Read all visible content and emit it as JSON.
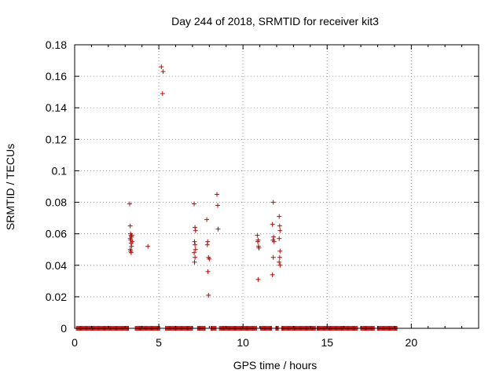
{
  "chart_data": {
    "type": "scatter",
    "title": "Day 244 of 2018, SRMTID for receiver kit3",
    "xlabel": "GPS time / hours",
    "ylabel": "SRMTID / TECUs",
    "xlim": [
      0,
      24
    ],
    "ylim": [
      0,
      0.18
    ],
    "x_ticks": [
      "0",
      "5",
      "10",
      "15",
      "20"
    ],
    "x_tick_values": [
      0,
      5,
      10,
      15,
      20
    ],
    "y_ticks": [
      "0",
      "0.02",
      "0.04",
      "0.06",
      "0.08",
      "0.1",
      "0.12",
      "0.14",
      "0.16",
      "0.18"
    ],
    "y_tick_values": [
      0,
      0.02,
      0.04,
      0.06,
      0.08,
      0.1,
      0.12,
      0.14,
      0.16,
      0.18
    ],
    "grid": true,
    "marker": "+",
    "color": "#cc0000",
    "series": [
      {
        "points": [
          [
            3.27,
            0.079
          ],
          [
            3.3,
            0.065
          ],
          [
            3.32,
            0.06
          ],
          [
            3.35,
            0.059
          ],
          [
            3.37,
            0.058
          ],
          [
            3.3,
            0.057
          ],
          [
            3.33,
            0.056
          ],
          [
            3.35,
            0.054
          ],
          [
            3.38,
            0.052
          ],
          [
            3.3,
            0.05
          ],
          [
            3.33,
            0.049
          ],
          [
            3.36,
            0.048
          ],
          [
            3.4,
            0.059
          ],
          [
            3.42,
            0.055
          ],
          [
            4.35,
            0.052
          ],
          [
            5.15,
            0.166
          ],
          [
            5.25,
            0.163
          ],
          [
            5.22,
            0.149
          ],
          [
            7.1,
            0.079
          ],
          [
            7.15,
            0.064
          ],
          [
            7.18,
            0.062
          ],
          [
            7.12,
            0.055
          ],
          [
            7.15,
            0.053
          ],
          [
            7.18,
            0.05
          ],
          [
            7.1,
            0.048
          ],
          [
            7.15,
            0.045
          ],
          [
            7.12,
            0.042
          ],
          [
            7.85,
            0.069
          ],
          [
            7.9,
            0.055
          ],
          [
            7.88,
            0.053
          ],
          [
            7.95,
            0.045
          ],
          [
            8.0,
            0.044
          ],
          [
            7.92,
            0.036
          ],
          [
            7.95,
            0.021
          ],
          [
            8.45,
            0.085
          ],
          [
            8.5,
            0.078
          ],
          [
            8.52,
            0.063
          ],
          [
            10.85,
            0.059
          ],
          [
            10.9,
            0.056
          ],
          [
            10.88,
            0.055
          ],
          [
            10.92,
            0.052
          ],
          [
            10.95,
            0.051
          ],
          [
            10.9,
            0.031
          ],
          [
            11.8,
            0.08
          ],
          [
            11.75,
            0.066
          ],
          [
            11.82,
            0.058
          ],
          [
            11.78,
            0.056
          ],
          [
            11.85,
            0.055
          ],
          [
            11.8,
            0.045
          ],
          [
            11.75,
            0.034
          ],
          [
            12.15,
            0.071
          ],
          [
            12.18,
            0.065
          ],
          [
            12.2,
            0.062
          ],
          [
            12.15,
            0.057
          ],
          [
            12.2,
            0.049
          ],
          [
            12.18,
            0.045
          ],
          [
            12.15,
            0.042
          ],
          [
            12.2,
            0.04
          ]
        ]
      }
    ],
    "zero_value_segments": [
      [
        0.1,
        3.2
      ],
      [
        3.6,
        5.05
      ],
      [
        5.4,
        7.0
      ],
      [
        7.3,
        7.75
      ],
      [
        8.1,
        8.4
      ],
      [
        8.6,
        10.8
      ],
      [
        11.05,
        11.7
      ],
      [
        11.95,
        12.1
      ],
      [
        12.3,
        14.3
      ],
      [
        14.4,
        16.8
      ],
      [
        17.0,
        17.8
      ],
      [
        18.0,
        19.15
      ]
    ]
  }
}
